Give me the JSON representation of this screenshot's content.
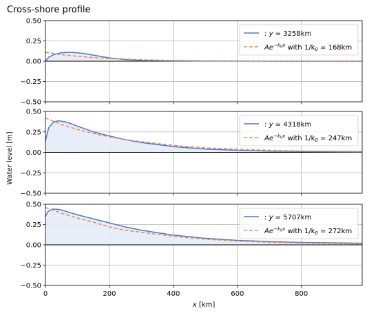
{
  "figure": {
    "title": "Cross-shore profile",
    "ylabel": "Water level [m]",
    "xlabel_var": "x",
    "xlabel_unit": " [km]"
  },
  "colors": {
    "model": "#4878cf",
    "fit": "#ee854a",
    "fill": "#e6ecf7",
    "grid": "#b0b0b0",
    "zero": "#000000"
  },
  "chart_data": [
    {
      "type": "line",
      "xlim": [
        0,
        990
      ],
      "ylim": [
        -0.5,
        0.5
      ],
      "xticks": [
        0,
        200,
        400,
        600,
        800
      ],
      "yticks": [
        -0.5,
        -0.25,
        0.0,
        0.25,
        0.5
      ],
      "ytick_labels": [
        "−0.50",
        "−0.25",
        "0.00",
        "0.25",
        "0.50"
      ],
      "xtick_labels": [
        "0",
        "200",
        "400",
        "600",
        "800"
      ],
      "show_xtick_labels": false,
      "grid": true,
      "legend_position": "upper right",
      "series": [
        {
          "name": ": y = 3258km",
          "style": "solid",
          "x": [
            0,
            10,
            25,
            50,
            70,
            90,
            120,
            150,
            200,
            250,
            300,
            400,
            500,
            600,
            700,
            800,
            990
          ],
          "values": [
            0.0,
            0.05,
            0.08,
            0.105,
            0.11,
            0.107,
            0.095,
            0.075,
            0.04,
            0.02,
            0.01,
            0.004,
            0.002,
            0.001,
            0.0005,
            0.0002,
            0.0
          ]
        },
        {
          "name": "Ae^{-k₀x} with 1/k₀ = 168km",
          "style": "dashed",
          "x": [
            0,
            50,
            100,
            150,
            200,
            250,
            300,
            400,
            500,
            600,
            700,
            800,
            990
          ],
          "values": [
            0.11,
            0.081,
            0.061,
            0.045,
            0.033,
            0.025,
            0.018,
            0.01,
            0.006,
            0.003,
            0.002,
            0.001,
            0.0003
          ]
        }
      ],
      "legend": {
        "model_label_prefix": ": ",
        "model_var": "y",
        "model_eq_value": " = 3258km",
        "fit_label_main": "Ae",
        "fit_label_exp": "−k",
        "fit_label_exp_sub": "0",
        "fit_label_exp_tail": "x",
        "fit_label_with": " with 1/k",
        "fit_label_sub": "0",
        "fit_label_value": " = 168km"
      }
    },
    {
      "type": "line",
      "xlim": [
        0,
        990
      ],
      "ylim": [
        -0.5,
        0.5
      ],
      "xticks": [
        0,
        200,
        400,
        600,
        800
      ],
      "yticks": [
        -0.5,
        -0.25,
        0.0,
        0.25,
        0.5
      ],
      "ytick_labels": [
        "−0.50",
        "−0.25",
        "0.00",
        "0.25",
        "0.50"
      ],
      "xtick_labels": [
        "0",
        "200",
        "400",
        "600",
        "800"
      ],
      "show_xtick_labels": false,
      "grid": true,
      "legend_position": "upper right",
      "series": [
        {
          "name": ": y = 4318km",
          "style": "solid",
          "x": [
            0,
            10,
            25,
            40,
            60,
            80,
            100,
            150,
            200,
            250,
            300,
            400,
            500,
            600,
            700,
            800,
            990
          ],
          "values": [
            0.14,
            0.3,
            0.37,
            0.385,
            0.375,
            0.35,
            0.32,
            0.25,
            0.2,
            0.155,
            0.12,
            0.07,
            0.04,
            0.025,
            0.015,
            0.01,
            0.005
          ]
        },
        {
          "name": "Ae^{-k₀x} with 1/k₀ = 247km",
          "style": "dashed",
          "x": [
            0,
            50,
            100,
            150,
            200,
            250,
            300,
            400,
            500,
            600,
            700,
            800,
            990
          ],
          "values": [
            0.42,
            0.34,
            0.28,
            0.23,
            0.19,
            0.155,
            0.13,
            0.085,
            0.055,
            0.037,
            0.025,
            0.016,
            0.01
          ]
        }
      ],
      "legend": {
        "model_label_prefix": ": ",
        "model_var": "y",
        "model_eq_value": " = 4318km",
        "fit_label_main": "Ae",
        "fit_label_exp": "−k",
        "fit_label_exp_sub": "0",
        "fit_label_exp_tail": "x",
        "fit_label_with": " with 1/k",
        "fit_label_sub": "0",
        "fit_label_value": " = 247km"
      }
    },
    {
      "type": "line",
      "xlim": [
        0,
        990
      ],
      "ylim": [
        -0.5,
        0.5
      ],
      "xticks": [
        0,
        200,
        400,
        600,
        800
      ],
      "yticks": [
        -0.5,
        -0.25,
        0.0,
        0.25,
        0.5
      ],
      "ytick_labels": [
        "−0.50",
        "−0.25",
        "0.00",
        "0.25",
        "0.50"
      ],
      "xtick_labels": [
        "0",
        "200",
        "400",
        "600",
        "800"
      ],
      "show_xtick_labels": true,
      "grid": true,
      "legend_position": "upper right",
      "series": [
        {
          "name": ": y = 5707km",
          "style": "solid",
          "x": [
            0,
            8,
            20,
            35,
            50,
            70,
            100,
            150,
            200,
            250,
            300,
            400,
            500,
            600,
            700,
            800,
            990
          ],
          "values": [
            0.35,
            0.41,
            0.44,
            0.44,
            0.43,
            0.405,
            0.37,
            0.32,
            0.27,
            0.22,
            0.18,
            0.12,
            0.08,
            0.055,
            0.04,
            0.03,
            0.02
          ]
        },
        {
          "name": "Ae^{-k₀x} with 1/k₀ = 272km",
          "style": "dashed",
          "x": [
            0,
            50,
            100,
            150,
            200,
            250,
            300,
            400,
            500,
            600,
            700,
            800,
            990
          ],
          "values": [
            0.46,
            0.39,
            0.33,
            0.28,
            0.22,
            0.18,
            0.155,
            0.105,
            0.07,
            0.047,
            0.032,
            0.022,
            0.012
          ]
        }
      ],
      "legend": {
        "model_label_prefix": ": ",
        "model_var": "y",
        "model_eq_value": " = 5707km",
        "fit_label_main": "Ae",
        "fit_label_exp": "−k",
        "fit_label_exp_sub": "0",
        "fit_label_exp_tail": "x",
        "fit_label_with": " with 1/k",
        "fit_label_sub": "0",
        "fit_label_value": " = 272km"
      }
    }
  ]
}
